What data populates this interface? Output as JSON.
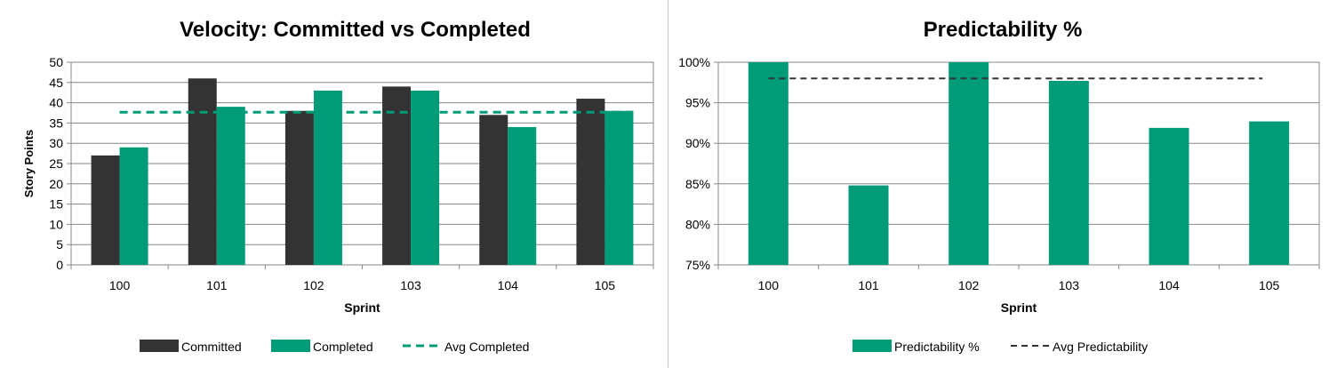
{
  "chart_data": [
    {
      "type": "bar",
      "title": "Velocity: Committed vs Completed",
      "xlabel": "Sprint",
      "ylabel": "Story Points",
      "categories": [
        "100",
        "101",
        "102",
        "103",
        "104",
        "105"
      ],
      "ylim": [
        0,
        50
      ],
      "yticks": [
        "0",
        "5",
        "10",
        "15",
        "20",
        "25",
        "30",
        "35",
        "40",
        "45",
        "50"
      ],
      "ytick_values": [
        0,
        5,
        10,
        15,
        20,
        25,
        30,
        35,
        40,
        45,
        50
      ],
      "series": [
        {
          "name": "Committed",
          "values": [
            27,
            46,
            38,
            44,
            37,
            41
          ],
          "color": "#333333"
        },
        {
          "name": "Completed",
          "values": [
            29,
            39,
            43,
            43,
            34,
            38
          ],
          "color": "#009B77"
        }
      ],
      "reference_line": {
        "name": "Avg Completed",
        "value": 37.67,
        "color": "#009B77",
        "style": "dashed"
      },
      "legend_position": "bottom",
      "grid": true
    },
    {
      "type": "bar",
      "title": "Predictability %",
      "xlabel": "Sprint",
      "ylabel": "",
      "categories": [
        "100",
        "101",
        "102",
        "103",
        "104",
        "105"
      ],
      "ylim": [
        75,
        100
      ],
      "yticks": [
        "75%",
        "80%",
        "85%",
        "90%",
        "95%",
        "100%"
      ],
      "ytick_values": [
        75,
        80,
        85,
        90,
        95,
        100
      ],
      "series": [
        {
          "name": "Predictability %",
          "values": [
            100,
            84.8,
            100,
            97.7,
            91.9,
            92.7
          ],
          "color": "#009B77"
        }
      ],
      "reference_line": {
        "name": "Avg Predictability",
        "value": 98,
        "color": "#333333",
        "style": "dashed"
      },
      "legend_position": "bottom",
      "grid": true
    }
  ]
}
